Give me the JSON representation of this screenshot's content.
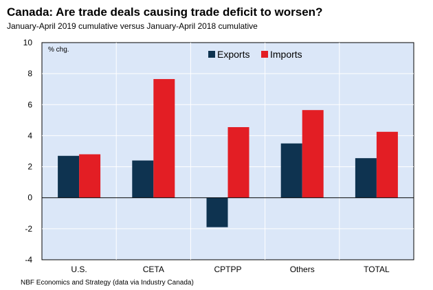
{
  "chart_data": {
    "type": "bar",
    "title": "Canada: Are trade deals causing trade deficit to worsen?",
    "subtitle": "January-April 2019 cumulative versus January-April 2018 cumulative",
    "ylabel": "% chg.",
    "xlabel": "",
    "ylim": [
      -4,
      10
    ],
    "yticks": [
      -4,
      -2,
      0,
      2,
      4,
      6,
      8,
      10
    ],
    "grid": true,
    "legend_position": "top-right",
    "categories": [
      "U.S.",
      "CETA",
      "CPTPP",
      "Others",
      "TOTAL"
    ],
    "series": [
      {
        "name": "Exports",
        "color": "#0e3350",
        "values": [
          2.7,
          2.4,
          -1.9,
          3.5,
          2.55
        ]
      },
      {
        "name": "Imports",
        "color": "#e31e24",
        "values": [
          2.8,
          7.65,
          4.55,
          5.65,
          4.25
        ]
      }
    ],
    "source": "NBF Economics and Strategy (data via Industry Canada)"
  }
}
